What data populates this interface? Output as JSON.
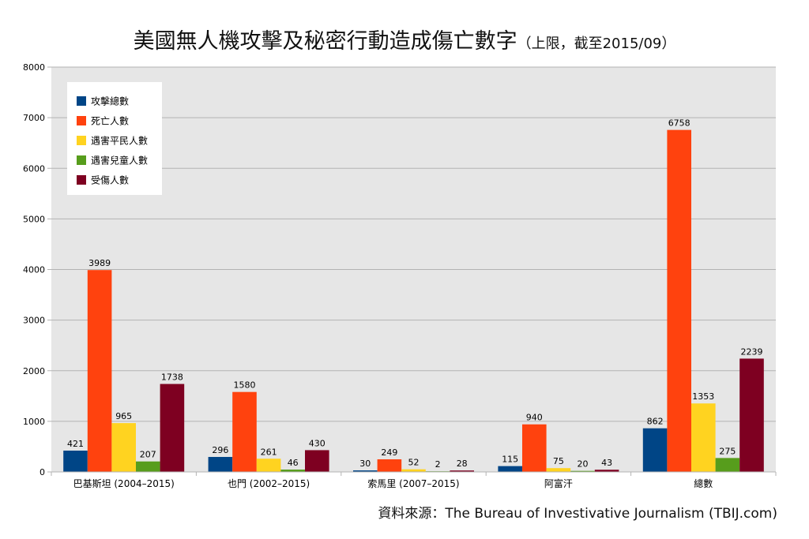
{
  "chart_data": {
    "type": "bar",
    "title": "美國無人機攻擊及秘密行動造成傷亡數字",
    "subtitle": "（上限，截至2015/09）",
    "xlabel": "",
    "ylabel": "",
    "ylim": [
      0,
      8000
    ],
    "yticks": [
      0,
      1000,
      2000,
      3000,
      4000,
      5000,
      6000,
      7000,
      8000
    ],
    "grid": true,
    "legend_position": "top-left",
    "categories": [
      "巴基斯坦 (2004–2015)",
      "也門 (2002–2015)",
      "索馬里 (2007–2015)",
      "阿富汗",
      "總數"
    ],
    "series": [
      {
        "name": "攻擊總數",
        "color": "#004586",
        "values": [
          421,
          296,
          30,
          115,
          862
        ]
      },
      {
        "name": "死亡人數",
        "color": "#ff420e",
        "values": [
          3989,
          1580,
          249,
          940,
          6758
        ]
      },
      {
        "name": "遇害平民人數",
        "color": "#ffd320",
        "values": [
          965,
          261,
          52,
          75,
          1353
        ]
      },
      {
        "name": "遇害兒童人數",
        "color": "#579d1c",
        "values": [
          207,
          46,
          2,
          20,
          275
        ]
      },
      {
        "name": "受傷人數",
        "color": "#7e0021",
        "values": [
          1738,
          430,
          28,
          43,
          2239
        ]
      }
    ]
  },
  "source": "資料來源：The Bureau of Investivative Journalism (TBIJ.com)"
}
